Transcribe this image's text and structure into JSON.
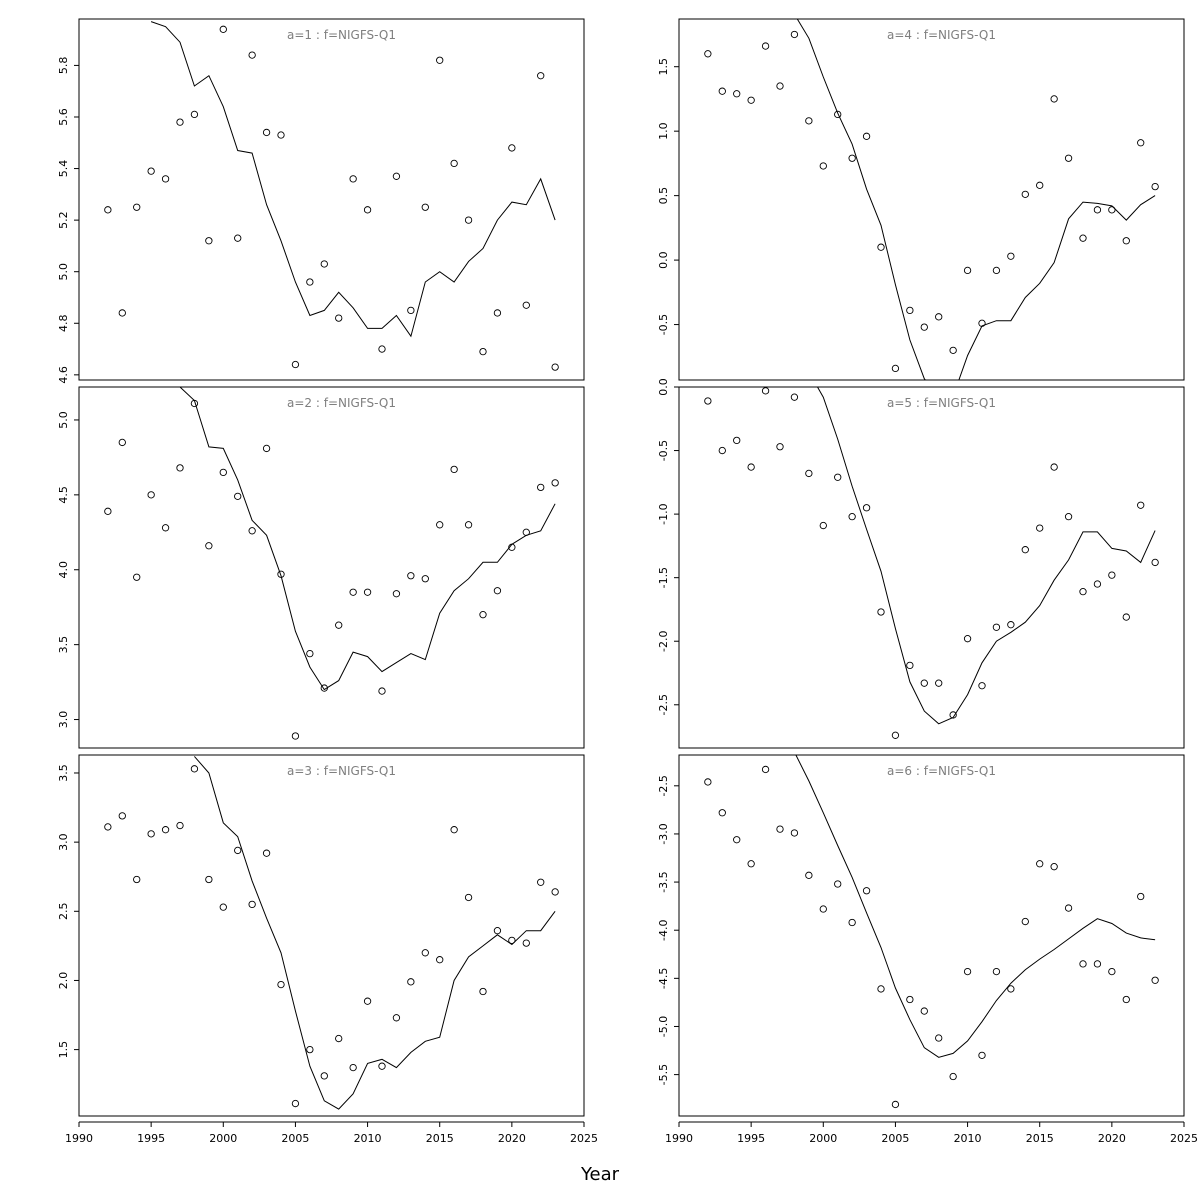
{
  "xlabel": "Year",
  "xlim": [
    1990,
    2025
  ],
  "xticks": [
    1990,
    1995,
    2000,
    2005,
    2010,
    2015,
    2020,
    2025
  ],
  "chart_data": [
    {
      "type": "scatter",
      "title": "a=1  :  f=NIGFS-Q1",
      "ylim": [
        4.58,
        5.98
      ],
      "yticks": [
        4.6,
        4.8,
        5.0,
        5.2,
        5.4,
        5.6,
        5.8
      ],
      "points": {
        "x": [
          1992,
          1993,
          1994,
          1995,
          1996,
          1997,
          1998,
          1999,
          2000,
          2001,
          2002,
          2003,
          2004,
          2005,
          2006,
          2007,
          2008,
          2009,
          2010,
          2011,
          2012,
          2013,
          2014,
          2015,
          2016,
          2017,
          2018,
          2019,
          2020,
          2021,
          2022,
          2023
        ],
        "y": [
          5.24,
          4.84,
          5.25,
          5.39,
          5.36,
          5.58,
          5.61,
          5.12,
          5.94,
          5.13,
          5.84,
          5.54,
          5.53,
          4.64,
          4.96,
          5.03,
          4.82,
          5.36,
          5.24,
          4.7,
          5.37,
          4.85,
          5.25,
          5.82,
          5.42,
          5.2,
          4.69,
          4.84,
          5.48,
          4.87,
          5.76,
          4.63
        ]
      },
      "line": {
        "x": [
          1995,
          1996,
          1997,
          1998,
          1999,
          2000,
          2001,
          2002,
          2003,
          2004,
          2005,
          2006,
          2007,
          2008,
          2009,
          2010,
          2011,
          2012,
          2013,
          2014,
          2015,
          2016,
          2017,
          2018,
          2019,
          2020,
          2021,
          2022,
          2023
        ],
        "y": [
          5.97,
          5.95,
          5.89,
          5.72,
          5.76,
          5.64,
          5.47,
          5.46,
          5.26,
          5.12,
          4.96,
          4.83,
          4.85,
          4.92,
          4.86,
          4.78,
          4.78,
          4.83,
          4.75,
          4.96,
          5.0,
          4.96,
          5.04,
          5.09,
          5.2,
          5.27,
          5.26,
          5.36,
          5.2
        ]
      }
    },
    {
      "type": "scatter",
      "title": "a=2  :  f=NIGFS-Q1",
      "ylim": [
        2.81,
        5.22
      ],
      "yticks": [
        3.0,
        3.5,
        4.0,
        4.5,
        5.0
      ],
      "points": {
        "x": [
          1992,
          1993,
          1994,
          1995,
          1996,
          1997,
          1998,
          1999,
          2000,
          2001,
          2002,
          2003,
          2004,
          2005,
          2006,
          2007,
          2008,
          2009,
          2010,
          2011,
          2012,
          2013,
          2014,
          2015,
          2016,
          2017,
          2018,
          2019,
          2020,
          2021,
          2022,
          2023
        ],
        "y": [
          4.39,
          4.85,
          3.95,
          4.5,
          4.28,
          4.68,
          5.11,
          4.16,
          4.65,
          4.49,
          4.26,
          4.81,
          3.97,
          2.89,
          3.44,
          3.21,
          3.63,
          3.85,
          3.85,
          3.19,
          3.84,
          3.96,
          3.94,
          4.3,
          4.67,
          4.3,
          3.7,
          3.86,
          4.15,
          4.25,
          4.55,
          4.58
        ]
      },
      "line": {
        "x": [
          1997,
          1998,
          1999,
          2000,
          2001,
          2002,
          2003,
          2004,
          2005,
          2006,
          2007,
          2008,
          2009,
          2010,
          2011,
          2012,
          2013,
          2014,
          2015,
          2016,
          2017,
          2018,
          2019,
          2020,
          2021,
          2022,
          2023
        ],
        "y": [
          5.22,
          5.13,
          4.82,
          4.81,
          4.6,
          4.33,
          4.23,
          3.96,
          3.59,
          3.35,
          3.2,
          3.26,
          3.45,
          3.42,
          3.32,
          3.38,
          3.44,
          3.4,
          3.71,
          3.86,
          3.94,
          4.05,
          4.05,
          4.17,
          4.23,
          4.26,
          4.44
        ]
      }
    },
    {
      "type": "scatter",
      "title": "a=3  :  f=NIGFS-Q1",
      "ylim": [
        1.02,
        3.63
      ],
      "yticks": [
        1.5,
        2.0,
        2.5,
        3.0,
        3.5
      ],
      "points": {
        "x": [
          1992,
          1993,
          1994,
          1995,
          1996,
          1997,
          1998,
          1999,
          2000,
          2001,
          2002,
          2003,
          2004,
          2005,
          2006,
          2007,
          2008,
          2009,
          2010,
          2011,
          2012,
          2013,
          2014,
          2015,
          2016,
          2017,
          2018,
          2019,
          2020,
          2021,
          2022,
          2023
        ],
        "y": [
          3.11,
          3.19,
          2.73,
          3.06,
          3.09,
          3.12,
          3.53,
          2.73,
          2.53,
          2.94,
          2.55,
          2.92,
          1.97,
          1.11,
          1.5,
          1.31,
          1.58,
          1.37,
          1.85,
          1.38,
          1.73,
          1.99,
          2.2,
          2.15,
          3.09,
          2.6,
          1.92,
          2.36,
          2.29,
          2.27,
          2.71,
          2.64
        ]
      },
      "line": {
        "x": [
          1998,
          1999,
          2000,
          2001,
          2002,
          2003,
          2004,
          2005,
          2006,
          2007,
          2008,
          2009,
          2010,
          2011,
          2012,
          2013,
          2014,
          2015,
          2016,
          2017,
          2018,
          2019,
          2020,
          2021,
          2022,
          2023
        ],
        "y": [
          3.62,
          3.5,
          3.14,
          3.04,
          2.72,
          2.45,
          2.2,
          1.78,
          1.38,
          1.13,
          1.07,
          1.18,
          1.4,
          1.43,
          1.37,
          1.48,
          1.56,
          1.59,
          2.0,
          2.17,
          2.25,
          2.33,
          2.26,
          2.36,
          2.36,
          2.5
        ]
      }
    },
    {
      "type": "scatter",
      "title": "a=4  :  f=NIGFS-Q1",
      "ylim": [
        -0.93,
        1.87
      ],
      "yticks": [
        -0.5,
        0.0,
        0.5,
        1.0,
        1.5
      ],
      "points": {
        "x": [
          1992,
          1993,
          1994,
          1995,
          1996,
          1997,
          1998,
          1999,
          2000,
          2001,
          2002,
          2003,
          2004,
          2005,
          2006,
          2007,
          2008,
          2009,
          2010,
          2011,
          2012,
          2013,
          2014,
          2015,
          2016,
          2017,
          2018,
          2019,
          2020,
          2021,
          2022,
          2023
        ],
        "y": [
          1.6,
          1.31,
          1.29,
          1.24,
          1.66,
          1.35,
          1.75,
          1.08,
          0.73,
          1.13,
          0.79,
          0.96,
          0.1,
          -0.84,
          -0.39,
          -0.52,
          -0.44,
          -0.7,
          -0.08,
          -0.49,
          -0.08,
          0.03,
          0.51,
          0.58,
          1.25,
          0.79,
          0.17,
          0.39,
          0.39,
          0.15,
          0.91,
          0.57
        ]
      },
      "line": {
        "x": [
          1998.2,
          1999,
          2000,
          2001,
          2002,
          2003,
          2004,
          2005,
          2006,
          2007,
          2007.3,
          2008,
          2009,
          2009.3,
          2010,
          2011,
          2012,
          2013,
          2014,
          2015,
          2016,
          2017,
          2018,
          2019,
          2020,
          2021,
          2022,
          2023
        ],
        "y": [
          1.87,
          1.72,
          1.42,
          1.14,
          0.9,
          0.55,
          0.27,
          -0.19,
          -0.62,
          -0.92,
          -0.96,
          -1.05,
          -1.05,
          -0.96,
          -0.74,
          -0.51,
          -0.47,
          -0.47,
          -0.29,
          -0.18,
          -0.02,
          0.32,
          0.45,
          0.44,
          0.42,
          0.31,
          0.43,
          0.5
        ]
      }
    },
    {
      "type": "scatter",
      "title": "a=5  :  f=NIGFS-Q1",
      "ylim": [
        -2.84,
        0.0
      ],
      "yticks": [
        -2.5,
        -2.0,
        -1.5,
        -1.0,
        -0.5,
        0.0
      ],
      "points": {
        "x": [
          1992,
          1993,
          1994,
          1995,
          1996,
          1997,
          1998,
          1999,
          2000,
          2001,
          2002,
          2003,
          2004,
          2005,
          2006,
          2007,
          2008,
          2009,
          2010,
          2011,
          2012,
          2013,
          2014,
          2015,
          2016,
          2017,
          2018,
          2019,
          2020,
          2021,
          2022,
          2023
        ],
        "y": [
          -0.11,
          -0.5,
          -0.42,
          -0.63,
          -0.03,
          -0.47,
          -0.08,
          -0.68,
          -1.09,
          -0.71,
          -1.02,
          -0.95,
          -1.77,
          -2.74,
          -2.19,
          -2.33,
          -2.33,
          -2.58,
          -1.98,
          -2.35,
          -1.89,
          -1.87,
          -1.28,
          -1.11,
          -0.63,
          -1.02,
          -1.61,
          -1.55,
          -1.48,
          -1.81,
          -0.93,
          -1.38
        ]
      },
      "line": {
        "x": [
          1999.6,
          2000,
          2001,
          2002,
          2003,
          2004,
          2005,
          2006,
          2007,
          2008,
          2009,
          2010,
          2011,
          2012,
          2013,
          2014,
          2015,
          2016,
          2017,
          2018,
          2019,
          2020,
          2021,
          2022,
          2023
        ],
        "y": [
          0.0,
          -0.08,
          -0.41,
          -0.78,
          -1.12,
          -1.45,
          -1.9,
          -2.32,
          -2.55,
          -2.65,
          -2.6,
          -2.42,
          -2.17,
          -2.0,
          -1.93,
          -1.85,
          -1.72,
          -1.52,
          -1.36,
          -1.14,
          -1.14,
          -1.27,
          -1.29,
          -1.38,
          -1.13
        ]
      }
    },
    {
      "type": "scatter",
      "title": "a=6  :  f=NIGFS-Q1",
      "ylim": [
        -5.93,
        -2.18
      ],
      "yticks": [
        -5.5,
        -5.0,
        -4.5,
        -4.0,
        -3.5,
        -3.0,
        -2.5
      ],
      "points": {
        "x": [
          1992,
          1993,
          1994,
          1995,
          1996,
          1997,
          1998,
          1999,
          2000,
          2001,
          2002,
          2003,
          2004,
          2005,
          2006,
          2007,
          2008,
          2009,
          2010,
          2011,
          2012,
          2013,
          2014,
          2015,
          2016,
          2017,
          2018,
          2019,
          2020,
          2021,
          2022,
          2023
        ],
        "y": [
          -2.46,
          -2.78,
          -3.06,
          -3.31,
          -2.33,
          -2.95,
          -2.99,
          -3.43,
          -3.78,
          -3.52,
          -3.92,
          -3.59,
          -4.61,
          -5.81,
          -4.72,
          -4.84,
          -5.12,
          -5.52,
          -4.43,
          -5.3,
          -4.43,
          -4.61,
          -3.91,
          -3.31,
          -3.34,
          -3.77,
          -4.35,
          -4.35,
          -4.43,
          -4.72,
          -3.65,
          -4.52
        ]
      },
      "line": {
        "x": [
          1998.1,
          1999,
          2000,
          2001,
          2002,
          2003,
          2004,
          2005,
          2006,
          2007,
          2008,
          2009,
          2010,
          2011,
          2012,
          2013,
          2014,
          2015,
          2016,
          2017,
          2018,
          2019,
          2020,
          2021,
          2022,
          2023
        ],
        "y": [
          -2.18,
          -2.45,
          -2.78,
          -3.12,
          -3.45,
          -3.82,
          -4.18,
          -4.6,
          -4.93,
          -5.22,
          -5.32,
          -5.28,
          -5.15,
          -4.95,
          -4.73,
          -4.55,
          -4.41,
          -4.3,
          -4.2,
          -4.09,
          -3.98,
          -3.88,
          -3.93,
          -4.03,
          -4.08,
          -4.1
        ]
      }
    }
  ]
}
